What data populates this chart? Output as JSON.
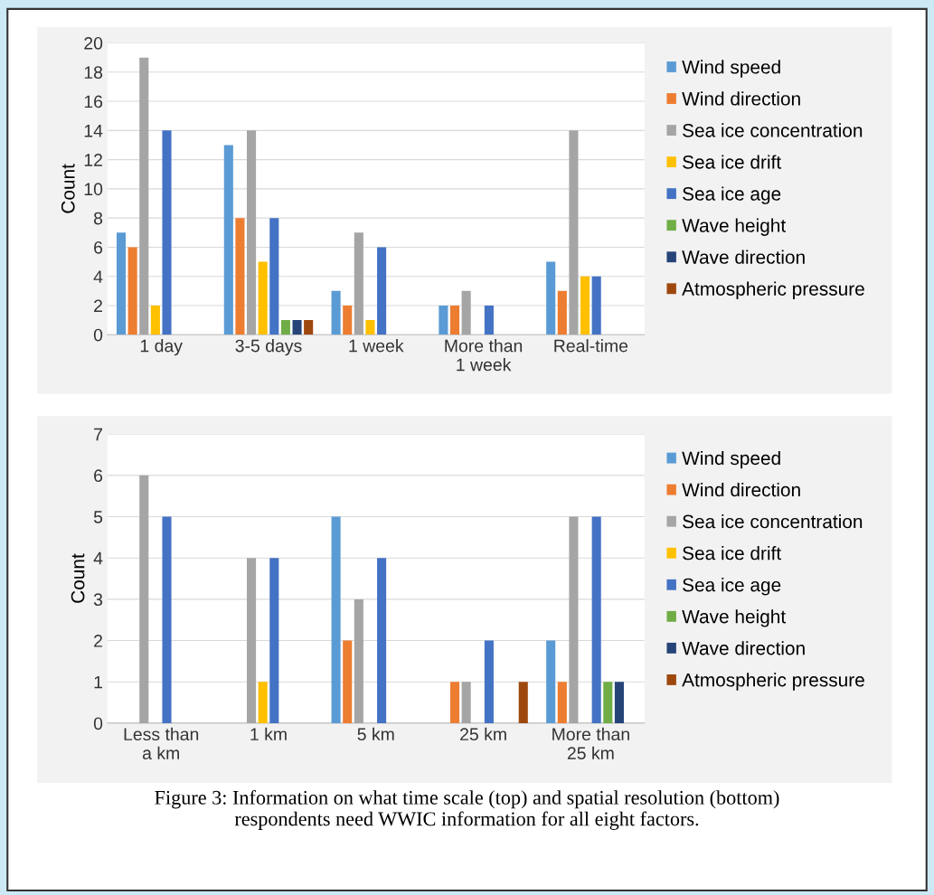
{
  "chart_data": [
    {
      "type": "bar",
      "ylabel": "Count",
      "categories": [
        "1 day",
        "3-5 days",
        "1 week",
        "More than\n1 week",
        "Real-time"
      ],
      "ylim": [
        0,
        20
      ],
      "yticks": [
        0,
        2,
        4,
        6,
        8,
        10,
        12,
        14,
        16,
        18,
        20
      ],
      "grid": "y",
      "legend": "right",
      "series": [
        {
          "name": "Wind speed",
          "color": "#5b9bd5",
          "values": [
            7,
            13,
            3,
            2,
            5
          ]
        },
        {
          "name": "Wind direction",
          "color": "#ed7d31",
          "values": [
            6,
            8,
            2,
            2,
            3
          ]
        },
        {
          "name": "Sea ice concentration",
          "color": "#a5a5a5",
          "values": [
            19,
            14,
            7,
            3,
            14
          ]
        },
        {
          "name": "Sea ice drift",
          "color": "#ffc000",
          "values": [
            2,
            5,
            1,
            0,
            4
          ]
        },
        {
          "name": "Sea ice age",
          "color": "#4472c4",
          "values": [
            14,
            8,
            6,
            2,
            4
          ]
        },
        {
          "name": "Wave height",
          "color": "#70ad47",
          "values": [
            0,
            1,
            0,
            0,
            0
          ]
        },
        {
          "name": "Wave direction",
          "color": "#264478",
          "values": [
            0,
            1,
            0,
            0,
            0
          ]
        },
        {
          "name": "Atmospheric pressure",
          "color": "#9e480e",
          "values": [
            0,
            1,
            0,
            0,
            0
          ]
        }
      ]
    },
    {
      "type": "bar",
      "ylabel": "Count",
      "categories": [
        "Less than\na km",
        "1 km",
        "5 km",
        "25 km",
        "More than\n25 km"
      ],
      "ylim": [
        0,
        7
      ],
      "yticks": [
        0,
        1,
        2,
        3,
        4,
        5,
        6,
        7
      ],
      "grid": "y",
      "legend": "right",
      "annotations": [
        "Figure 3: Information on what time scale (top) and spatial resolution (bottom)\nrespondents need WWIC information for all eight factors."
      ],
      "series": [
        {
          "name": "Wind speed",
          "color": "#5b9bd5",
          "values": [
            0,
            0,
            5,
            0,
            2
          ]
        },
        {
          "name": "Wind direction",
          "color": "#ed7d31",
          "values": [
            0,
            0,
            2,
            1,
            1
          ]
        },
        {
          "name": "Sea ice concentration",
          "color": "#a5a5a5",
          "values": [
            6,
            4,
            3,
            1,
            5
          ]
        },
        {
          "name": "Sea ice drift",
          "color": "#ffc000",
          "values": [
            0,
            1,
            0,
            0,
            0
          ]
        },
        {
          "name": "Sea ice age",
          "color": "#4472c4",
          "values": [
            5,
            4,
            4,
            2,
            5
          ]
        },
        {
          "name": "Wave height",
          "color": "#70ad47",
          "values": [
            0,
            0,
            0,
            0,
            1
          ]
        },
        {
          "name": "Wave direction",
          "color": "#264478",
          "values": [
            0,
            0,
            0,
            0,
            1
          ]
        },
        {
          "name": "Atmospheric pressure",
          "color": "#9e480e",
          "values": [
            0,
            0,
            0,
            1,
            0
          ]
        }
      ]
    }
  ]
}
